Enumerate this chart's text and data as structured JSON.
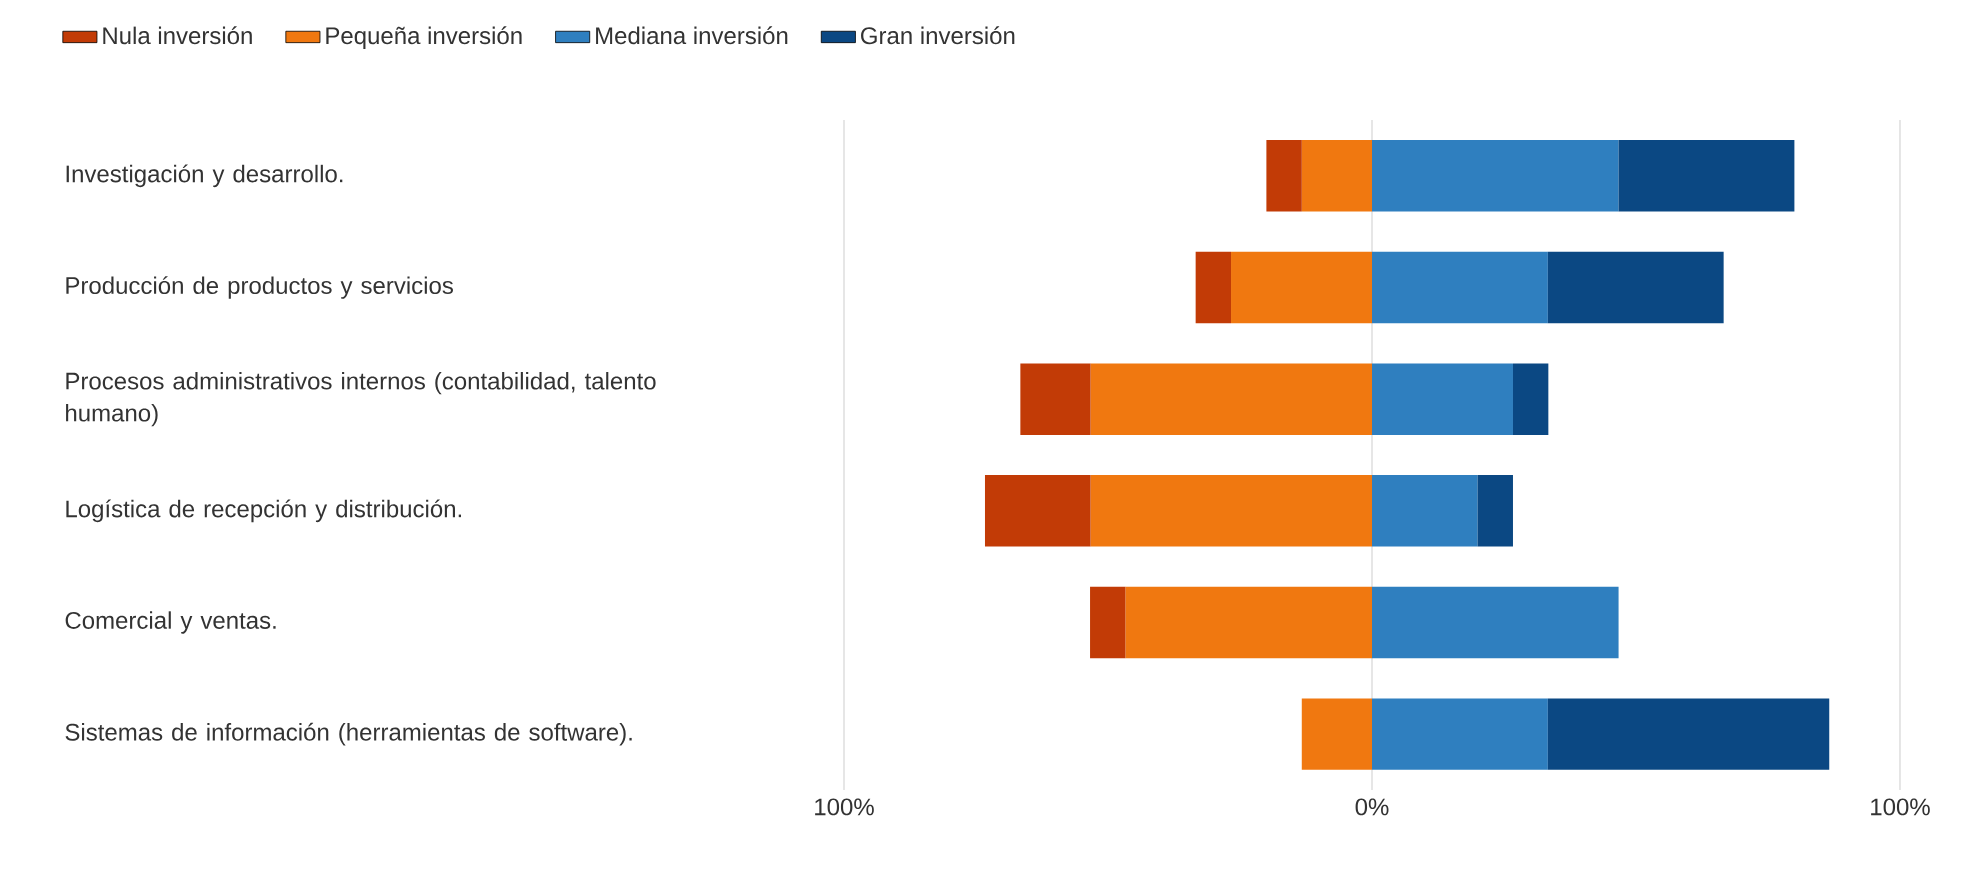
{
  "chart_data": {
    "type": "bar",
    "orientation": "horizontal",
    "stacked": true,
    "grid": "x",
    "legend": "top left",
    "categories": [
      "Investigación y desarrollo.",
      "Producción de productos y servicios",
      "Procesos administrativos internos (contabilidad, talento humano)",
      "Logística de recepción y distribución.",
      "Comercial y ventas.",
      "Sistemas de información (herramientas de software)."
    ],
    "series": [
      {
        "name": "Nula inversión",
        "color": "#c23b06",
        "values": [
          -6.7,
          -6.7,
          -13.3,
          -20,
          -6.7,
          null
        ]
      },
      {
        "name": "Pequeña inversión",
        "color": "#f07810",
        "values": [
          -13.3,
          -26.7,
          -53.3,
          -53.3,
          -46.7,
          -13.3
        ]
      },
      {
        "name": "Mediana inversión",
        "color": "#2f7fbf",
        "values": [
          46.7,
          33.3,
          26.7,
          20,
          46.7,
          33.3
        ]
      },
      {
        "name": "Gran inversión",
        "color": "#0b4883",
        "values": [
          33.3,
          33.3,
          6.7,
          6.7,
          null,
          53.3
        ]
      }
    ],
    "xlim": [
      -100,
      100
    ],
    "xticks": [
      {
        "value": -100,
        "label": "100%"
      },
      {
        "value": 0,
        "label": "0%"
      },
      {
        "value": 100,
        "label": "100%"
      }
    ]
  }
}
